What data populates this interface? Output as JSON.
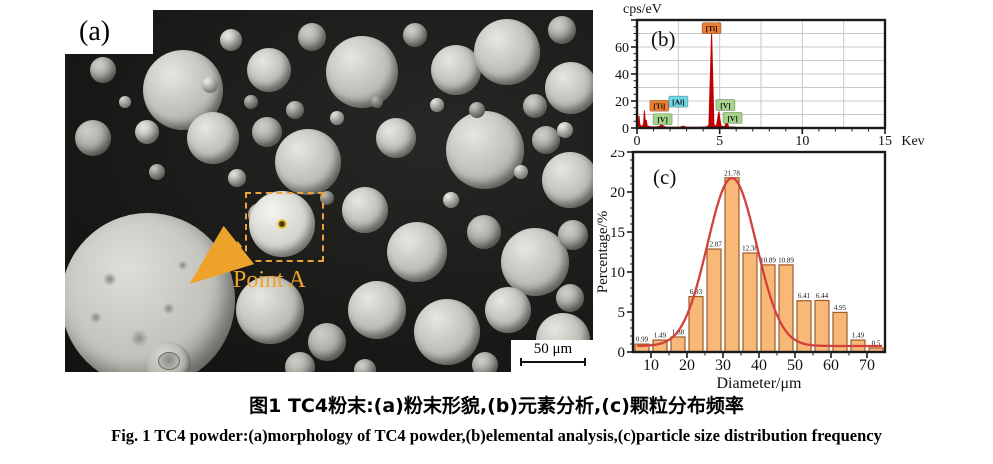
{
  "figure": {
    "panel_a": {
      "label": "(a)",
      "point_label": "Point A",
      "scale_bar": "50 μm"
    },
    "caption_zh": "图1  TC4粉末:(a)粉末形貌,(b)元素分析,(c)颗粒分布频率",
    "caption_en": "Fig. 1  TC4 powder:(a)morphology of TC4 powder,(b)elemental analysis,(c)particle size distribution frequency"
  },
  "chart_data": [
    {
      "type": "line",
      "panel_label": "(b)",
      "ylabel": "cps/eV",
      "x_unit": "Kev",
      "xlim": [
        0,
        15
      ],
      "ylim": [
        0,
        80
      ],
      "xticks": [
        0,
        5,
        10,
        15
      ],
      "yticks": [
        0,
        20,
        40,
        60
      ],
      "grid": true,
      "line_color": "#c00000",
      "series": [
        {
          "name": "EDS spectrum",
          "points": [
            [
              0,
              0.2
            ],
            [
              0.07,
              2
            ],
            [
              0.12,
              9
            ],
            [
              0.17,
              2.5
            ],
            [
              0.3,
              1
            ],
            [
              0.4,
              3
            ],
            [
              0.45,
              13
            ],
            [
              0.5,
              4
            ],
            [
              0.55,
              6
            ],
            [
              0.62,
              1.5
            ],
            [
              0.8,
              0.8
            ],
            [
              1.2,
              0.8
            ],
            [
              1.42,
              1.5
            ],
            [
              1.49,
              8
            ],
            [
              1.58,
              1.2
            ],
            [
              1.8,
              0.7
            ],
            [
              2.2,
              0.6
            ],
            [
              2.6,
              0.7
            ],
            [
              2.8,
              1.4
            ],
            [
              3.0,
              0.6
            ],
            [
              3.4,
              0.5
            ],
            [
              3.8,
              0.6
            ],
            [
              4.2,
              0.8
            ],
            [
              4.35,
              2
            ],
            [
              4.51,
              70
            ],
            [
              4.65,
              2.5
            ],
            [
              4.8,
              1.2
            ],
            [
              4.95,
              12
            ],
            [
              5.08,
              1.5
            ],
            [
              5.3,
              1
            ],
            [
              5.43,
              4.5
            ],
            [
              5.55,
              0.8
            ],
            [
              6,
              0.5
            ],
            [
              6.5,
              0.4
            ],
            [
              7,
              0.4
            ],
            [
              8,
              0.35
            ],
            [
              9,
              0.3
            ],
            [
              10,
              0.3
            ],
            [
              11,
              0.3
            ],
            [
              12,
              0.25
            ],
            [
              13,
              0.25
            ],
            [
              14,
              0.2
            ],
            [
              15,
              0.2
            ]
          ]
        }
      ],
      "peak_labels": [
        {
          "label": "[Ti]",
          "x": 0.45,
          "y": 13,
          "label_x": 1.35,
          "label_y": 16.5,
          "bg": "#ed7d31",
          "fg": "#6b1a00"
        },
        {
          "label": "[V]",
          "x": 0.51,
          "y": 6,
          "label_x": 1.55,
          "label_y": 6.5,
          "bg": "#a6d48c",
          "fg": "#1f4d12"
        },
        {
          "label": "[Al]",
          "x": 1.49,
          "y": 8,
          "label_x": 2.5,
          "label_y": 19.5,
          "bg": "#6fd8e8",
          "fg": "#063c46"
        },
        {
          "label": "[Ti]",
          "x": 4.51,
          "y": 70,
          "label_x": 4.51,
          "label_y": 74,
          "bg": "#ed7d31",
          "fg": "#6b1a00"
        },
        {
          "label": "[V]",
          "x": 4.95,
          "y": 12,
          "label_x": 5.35,
          "label_y": 17,
          "bg": "#a6d48c",
          "fg": "#1f4d12"
        },
        {
          "label": "[V]",
          "x": 5.43,
          "y": 4.5,
          "label_x": 5.78,
          "label_y": 7.5,
          "bg": "#a6d48c",
          "fg": "#1f4d12"
        }
      ]
    },
    {
      "type": "bar",
      "panel_label": "(c)",
      "xlabel": "Diameter/μm",
      "ylabel": "Percentage/%",
      "xlim": [
        5,
        75
      ],
      "ylim": [
        0,
        25
      ],
      "xticks": [
        10,
        20,
        30,
        40,
        50,
        60,
        70
      ],
      "yticks": [
        0,
        5,
        10,
        15,
        20,
        25
      ],
      "categories": [
        7.5,
        12.5,
        17.5,
        22.5,
        27.5,
        32.5,
        37.5,
        42.5,
        47.5,
        52.5,
        57.5,
        62.5,
        67.5,
        72.5
      ],
      "values": [
        0.99,
        1.49,
        1.88,
        6.93,
        12.87,
        21.78,
        12.38,
        10.89,
        10.89,
        6.41,
        6.44,
        4.95,
        1.49,
        0.5
      ],
      "value_labels": [
        "0.99",
        "1.49",
        "1.88",
        "6.93",
        "12.87",
        "21.78",
        "12.38",
        "10.89",
        "10.89",
        "6.41",
        "6.44",
        "4.95",
        "1.49",
        "0.5"
      ],
      "bar_fill": "#f7b878",
      "bar_border": "#a05a28",
      "label_color": "#7d2f2f",
      "fit_curve": {
        "shape": "gaussian",
        "amplitude": 21.0,
        "center": 32.5,
        "sigma": 6.8,
        "baseline": 0.75,
        "color": "#d3413c"
      }
    }
  ]
}
